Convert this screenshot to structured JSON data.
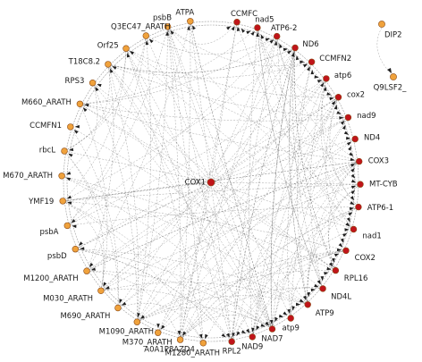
{
  "network": {
    "center_node": {
      "label": "COX1",
      "group": "red"
    },
    "outer_nodes": [
      {
        "label": "CCMFC",
        "group": "red"
      },
      {
        "label": "nad5",
        "group": "red"
      },
      {
        "label": "ATP6-2",
        "group": "red"
      },
      {
        "label": "ND6",
        "group": "red"
      },
      {
        "label": "CCMFN2",
        "group": "red"
      },
      {
        "label": "atp6",
        "group": "red"
      },
      {
        "label": "cox2",
        "group": "red"
      },
      {
        "label": "nad9",
        "group": "red"
      },
      {
        "label": "ND4",
        "group": "red"
      },
      {
        "label": "COX3",
        "group": "red"
      },
      {
        "label": "MT-CYB",
        "group": "red"
      },
      {
        "label": "ATP6-1",
        "group": "red"
      },
      {
        "label": "nad1",
        "group": "red"
      },
      {
        "label": "COX2",
        "group": "red"
      },
      {
        "label": "RPL16",
        "group": "red"
      },
      {
        "label": "ND4L",
        "group": "red"
      },
      {
        "label": "ATP9",
        "group": "red"
      },
      {
        "label": "atp9",
        "group": "red"
      },
      {
        "label": "NAD7",
        "group": "red"
      },
      {
        "label": "NAD9",
        "group": "red"
      },
      {
        "label": "RPL2",
        "group": "red"
      },
      {
        "label": "M1280_ARATH",
        "group": "orange"
      },
      {
        "label": "A0A1P8AZD4",
        "group": "orange"
      },
      {
        "label": "M370_ARATH",
        "group": "orange"
      },
      {
        "label": "M1090_ARATH",
        "group": "orange"
      },
      {
        "label": "M690_ARATH",
        "group": "orange"
      },
      {
        "label": "M030_ARATH",
        "group": "orange"
      },
      {
        "label": "M1200_ARATH",
        "group": "orange"
      },
      {
        "label": "psbD",
        "group": "orange"
      },
      {
        "label": "psbA",
        "group": "orange"
      },
      {
        "label": "YMF19",
        "group": "orange"
      },
      {
        "label": "M670_ARATH",
        "group": "orange"
      },
      {
        "label": "rbcL",
        "group": "orange"
      },
      {
        "label": "CCMFN1",
        "group": "orange"
      },
      {
        "label": "M660_ARATH",
        "group": "orange"
      },
      {
        "label": "RPS3",
        "group": "orange"
      },
      {
        "label": "T18C8.2",
        "group": "orange"
      },
      {
        "label": "Orf25",
        "group": "orange"
      },
      {
        "label": "Q3EC47_ARATH",
        "group": "orange"
      },
      {
        "label": "psbB",
        "group": "orange"
      },
      {
        "label": "ATPA",
        "group": "orange"
      }
    ],
    "side_pair": [
      {
        "label": "DIP2",
        "group": "orange"
      },
      {
        "label": "Q9LSF2_",
        "group": "orange"
      }
    ]
  },
  "colors": {
    "red": "#c0141a",
    "orange": "#f0a23c",
    "edge": "#5a5a5a",
    "arrow": "#1e1e1e"
  }
}
